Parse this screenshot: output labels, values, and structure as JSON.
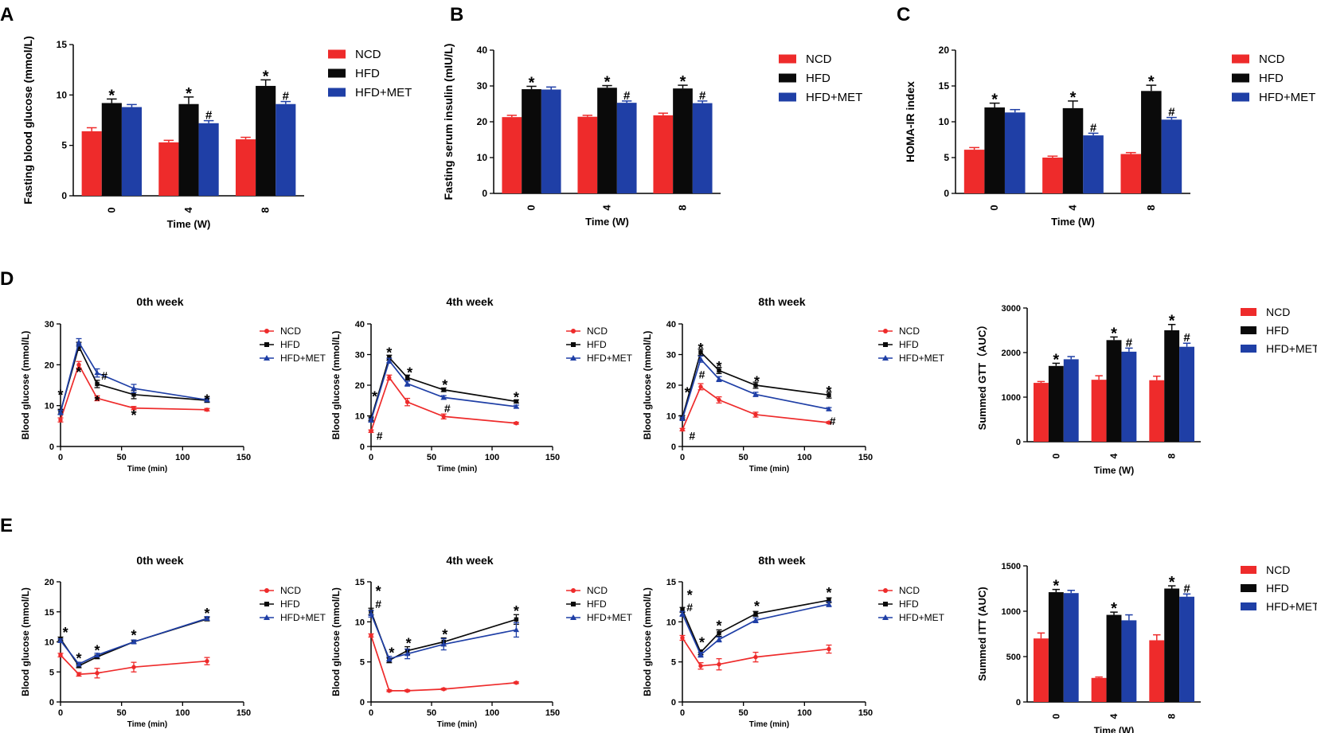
{
  "panel_letters": [
    "A",
    "B",
    "C",
    "D",
    "E"
  ],
  "colors": {
    "NCD": "#ee2b2b",
    "HFD": "#0a0a0a",
    "HFD+MET": "#1f3fa6"
  },
  "chart_data": [
    {
      "id": "A",
      "type": "bar",
      "title": "",
      "xlabel": "Time (W)",
      "ylabel": "Fasting blood glucose (mmol/L)",
      "categories": [
        "0",
        "4",
        "8"
      ],
      "ylim": [
        0,
        15
      ],
      "yticks": [
        0,
        5,
        10,
        15
      ],
      "series": [
        {
          "name": "NCD",
          "values": [
            6.4,
            5.3,
            5.6
          ],
          "err": [
            0.35,
            0.2,
            0.2
          ]
        },
        {
          "name": "HFD",
          "values": [
            9.2,
            9.1,
            10.9
          ],
          "err": [
            0.4,
            0.7,
            0.6
          ]
        },
        {
          "name": "HFD+MET",
          "values": [
            8.8,
            7.2,
            9.1
          ],
          "err": [
            0.25,
            0.25,
            0.25
          ]
        }
      ],
      "annotations": [
        [
          "",
          "*",
          ""
        ],
        [
          "",
          "*",
          "#"
        ],
        [
          "",
          "*",
          "#"
        ]
      ],
      "legend": [
        "NCD",
        "HFD",
        "HFD+MET"
      ]
    },
    {
      "id": "B",
      "type": "bar",
      "title": "",
      "xlabel": "Time (W)",
      "ylabel": "Fasting serum insulin (mIU/L)",
      "categories": [
        "0",
        "4",
        "8"
      ],
      "ylim": [
        0,
        40
      ],
      "yticks": [
        0,
        10,
        20,
        30,
        40
      ],
      "series": [
        {
          "name": "NCD",
          "values": [
            21.3,
            21.4,
            21.8
          ],
          "err": [
            0.5,
            0.4,
            0.6
          ]
        },
        {
          "name": "HFD",
          "values": [
            29.1,
            29.5,
            29.3
          ],
          "err": [
            0.8,
            0.6,
            0.9
          ]
        },
        {
          "name": "HFD+MET",
          "values": [
            29.0,
            25.3,
            25.2
          ],
          "err": [
            0.7,
            0.5,
            0.6
          ]
        }
      ],
      "annotations": [
        [
          "",
          "*",
          ""
        ],
        [
          "",
          "*",
          "#"
        ],
        [
          "",
          "*",
          "#"
        ]
      ],
      "legend": [
        "NCD",
        "HFD",
        "HFD+MET"
      ]
    },
    {
      "id": "C",
      "type": "bar",
      "title": "",
      "xlabel": "Time (W)",
      "ylabel": "HOMA-IR index",
      "categories": [
        "0",
        "4",
        "8"
      ],
      "ylim": [
        0,
        20
      ],
      "yticks": [
        0,
        5,
        10,
        15,
        20
      ],
      "series": [
        {
          "name": "NCD",
          "values": [
            6.1,
            5.0,
            5.5
          ],
          "err": [
            0.3,
            0.2,
            0.2
          ]
        },
        {
          "name": "HFD",
          "values": [
            12.0,
            11.9,
            14.3
          ],
          "err": [
            0.6,
            1.0,
            0.8
          ]
        },
        {
          "name": "HFD+MET",
          "values": [
            11.3,
            8.1,
            10.3
          ],
          "err": [
            0.4,
            0.3,
            0.3
          ]
        }
      ],
      "annotations": [
        [
          "",
          "*",
          ""
        ],
        [
          "",
          "*",
          "#"
        ],
        [
          "",
          "*",
          "#"
        ]
      ],
      "legend": [
        "NCD",
        "HFD",
        "HFD+MET"
      ]
    },
    {
      "id": "D1",
      "type": "line",
      "title": "0th week",
      "xlabel": "Time (min)",
      "ylabel": "Blood glucose (mmol/L)",
      "x": [
        0,
        15,
        30,
        60,
        120
      ],
      "xlim": [
        0,
        150
      ],
      "xticks": [
        0,
        50,
        100,
        150
      ],
      "ylim": [
        0,
        30
      ],
      "yticks": [
        0,
        10,
        20,
        30
      ],
      "series": [
        {
          "name": "NCD",
          "values": [
            6.5,
            20.0,
            11.8,
            9.4,
            9.0
          ],
          "err": [
            0.5,
            0.8,
            0.6,
            0.4,
            0.3
          ]
        },
        {
          "name": "HFD",
          "values": [
            8.5,
            24.5,
            15.3,
            12.7,
            11.3
          ],
          "err": [
            0.6,
            1.0,
            0.9,
            1.0,
            0.5
          ]
        },
        {
          "name": "HFD+MET",
          "values": [
            8.3,
            25.5,
            18.0,
            14.2,
            11.4
          ],
          "err": [
            0.5,
            0.9,
            1.0,
            1.0,
            0.4
          ]
        }
      ],
      "annotations": [
        {
          "x": 0,
          "y": 13.0,
          "text": "*"
        },
        {
          "x": 15,
          "y": 18.5,
          "text": "*"
        },
        {
          "x": 30,
          "y": 11.5,
          "text": "*"
        },
        {
          "x": 36,
          "y": 17.3,
          "text": "#"
        },
        {
          "x": 60,
          "y": 8.0,
          "text": "*"
        },
        {
          "x": 120,
          "y": 11.8,
          "text": "*"
        }
      ],
      "legend": [
        "NCD",
        "HFD",
        "HFD+MET"
      ]
    },
    {
      "id": "D2",
      "type": "line",
      "title": "4th week",
      "xlabel": "Time (min)",
      "ylabel": "Blood glucose (mmol/L)",
      "x": [
        0,
        15,
        30,
        60,
        120
      ],
      "xlim": [
        0,
        150
      ],
      "xticks": [
        0,
        50,
        100,
        150
      ],
      "ylim": [
        0,
        40
      ],
      "yticks": [
        0,
        10,
        20,
        30,
        40
      ],
      "series": [
        {
          "name": "NCD",
          "values": [
            5.0,
            22.5,
            14.5,
            9.8,
            7.6
          ],
          "err": [
            0.4,
            0.8,
            1.2,
            0.8,
            0.3
          ]
        },
        {
          "name": "HFD",
          "values": [
            9.0,
            29.0,
            22.5,
            18.5,
            14.7
          ],
          "err": [
            0.6,
            0.8,
            0.8,
            0.6,
            0.5
          ]
        },
        {
          "name": "HFD+MET",
          "values": [
            8.5,
            28.0,
            20.5,
            16.0,
            13.0
          ],
          "err": [
            0.5,
            0.8,
            0.8,
            0.6,
            0.5
          ]
        }
      ],
      "annotations": [
        {
          "x": 3,
          "y": 16.8,
          "text": "*"
        },
        {
          "x": 7,
          "y": 3.5,
          "text": "#"
        },
        {
          "x": 15,
          "y": 31.0,
          "text": "*"
        },
        {
          "x": 32,
          "y": 24.5,
          "text": "*"
        },
        {
          "x": 63,
          "y": 12.5,
          "text": "#"
        },
        {
          "x": 61,
          "y": 20.5,
          "text": "*"
        },
        {
          "x": 120,
          "y": 16.5,
          "text": "*"
        }
      ],
      "legend": [
        "NCD",
        "HFD",
        "HFD+MET"
      ]
    },
    {
      "id": "D3",
      "type": "line",
      "title": "8th week",
      "xlabel": "Time (min)",
      "ylabel": "Blood glucose (mmol/L)",
      "x": [
        0,
        15,
        30,
        60,
        120
      ],
      "xlim": [
        0,
        150
      ],
      "xticks": [
        0,
        50,
        100,
        150
      ],
      "ylim": [
        0,
        40
      ],
      "yticks": [
        0,
        10,
        20,
        30,
        40
      ],
      "series": [
        {
          "name": "NCD",
          "values": [
            5.5,
            19.5,
            15.2,
            10.4,
            7.8
          ],
          "err": [
            0.4,
            1.0,
            1.0,
            0.8,
            0.3
          ]
        },
        {
          "name": "HFD",
          "values": [
            9.5,
            30.8,
            24.8,
            20.0,
            16.8
          ],
          "err": [
            0.6,
            1.0,
            1.0,
            1.0,
            1.0
          ]
        },
        {
          "name": "HFD+MET",
          "values": [
            9.0,
            28.5,
            22.0,
            17.0,
            12.2
          ],
          "err": [
            0.5,
            1.0,
            0.8,
            0.7,
            0.5
          ]
        }
      ],
      "annotations": [
        {
          "x": 4,
          "y": 18.0,
          "text": "*"
        },
        {
          "x": 8,
          "y": 3.5,
          "text": "#"
        },
        {
          "x": 15,
          "y": 32.5,
          "text": "*"
        },
        {
          "x": 16,
          "y": 23.5,
          "text": "#"
        },
        {
          "x": 30,
          "y": 26.5,
          "text": "*"
        },
        {
          "x": 61,
          "y": 21.7,
          "text": "*"
        },
        {
          "x": 120,
          "y": 18.5,
          "text": "*"
        },
        {
          "x": 123,
          "y": 8.3,
          "text": "#"
        }
      ],
      "legend": [
        "NCD",
        "HFD",
        "HFD+MET"
      ]
    },
    {
      "id": "D4",
      "type": "bar",
      "title": "",
      "xlabel": "Time (W)",
      "ylabel": "Summed GTT（AUC）",
      "categories": [
        "0",
        "4",
        "8"
      ],
      "ylim": [
        0,
        3000
      ],
      "yticks": [
        0,
        1000,
        2000,
        3000
      ],
      "series": [
        {
          "name": "NCD",
          "values": [
            1320,
            1390,
            1380
          ],
          "err": [
            30,
            90,
            90
          ]
        },
        {
          "name": "HFD",
          "values": [
            1700,
            2280,
            2500
          ],
          "err": [
            60,
            70,
            130
          ]
        },
        {
          "name": "HFD+MET",
          "values": [
            1850,
            2020,
            2130
          ],
          "err": [
            60,
            80,
            80
          ]
        }
      ],
      "annotations": [
        [
          "",
          "*",
          ""
        ],
        [
          "",
          "*",
          "#"
        ],
        [
          "",
          "*",
          "#"
        ]
      ],
      "legend": [
        "NCD",
        "HFD",
        "HFD+MET"
      ]
    },
    {
      "id": "E1",
      "type": "line",
      "title": "0th week",
      "xlabel": "Time (min)",
      "ylabel": "Blood glucose (mmol/L)",
      "x": [
        0,
        15,
        30,
        60,
        120
      ],
      "xlim": [
        0,
        150
      ],
      "xticks": [
        0,
        50,
        100,
        150
      ],
      "ylim": [
        0,
        20
      ],
      "yticks": [
        0,
        5,
        10,
        15,
        20
      ],
      "series": [
        {
          "name": "NCD",
          "values": [
            7.8,
            4.6,
            4.8,
            5.8,
            6.8
          ],
          "err": [
            0.3,
            0.3,
            0.8,
            0.8,
            0.6
          ]
        },
        {
          "name": "HFD",
          "values": [
            10.5,
            6.0,
            7.5,
            10.0,
            13.8
          ],
          "err": [
            0.3,
            0.3,
            0.3,
            0.3,
            0.3
          ]
        },
        {
          "name": "HFD+MET",
          "values": [
            10.2,
            6.3,
            7.8,
            10.0,
            13.9
          ],
          "err": [
            0.3,
            0.3,
            0.3,
            0.3,
            0.3
          ]
        }
      ],
      "annotations": [
        {
          "x": 4,
          "y": 11.8,
          "text": "*"
        },
        {
          "x": 15,
          "y": 7.5,
          "text": "*"
        },
        {
          "x": 30,
          "y": 8.8,
          "text": "*"
        },
        {
          "x": 60,
          "y": 11.3,
          "text": "*"
        },
        {
          "x": 120,
          "y": 15.0,
          "text": "*"
        }
      ],
      "legend": [
        "NCD",
        "HFD",
        "HFD+MET"
      ]
    },
    {
      "id": "E2",
      "type": "line",
      "title": "4th week",
      "xlabel": "Time (min)",
      "ylabel": "Blood glucose (mmol/L)",
      "x": [
        0,
        15,
        30,
        60,
        120
      ],
      "xlim": [
        0,
        150
      ],
      "xticks": [
        0,
        50,
        100,
        150
      ],
      "ylim": [
        0,
        15
      ],
      "yticks": [
        0,
        5,
        10,
        15
      ],
      "series": [
        {
          "name": "NCD",
          "values": [
            8.3,
            1.4,
            1.4,
            1.6,
            2.4
          ],
          "err": [
            0.2,
            0.1,
            0.1,
            0.1,
            0.1
          ]
        },
        {
          "name": "HFD",
          "values": [
            11.3,
            5.2,
            6.4,
            7.5,
            10.3
          ],
          "err": [
            0.4,
            0.3,
            0.5,
            0.5,
            0.6
          ]
        },
        {
          "name": "HFD+MET",
          "values": [
            11.0,
            5.4,
            6.0,
            7.2,
            9.0
          ],
          "err": [
            0.4,
            0.3,
            0.6,
            0.7,
            0.9
          ]
        }
      ],
      "annotations": [
        {
          "x": 6,
          "y": 14.0,
          "text": "*"
        },
        {
          "x": 6,
          "y": 12.2,
          "text": "#"
        },
        {
          "x": 17,
          "y": 6.3,
          "text": "*"
        },
        {
          "x": 31,
          "y": 7.5,
          "text": "*"
        },
        {
          "x": 61,
          "y": 8.6,
          "text": "*"
        },
        {
          "x": 120,
          "y": 11.5,
          "text": "*"
        }
      ],
      "legend": [
        "NCD",
        "HFD",
        "HFD+MET"
      ]
    },
    {
      "id": "E3",
      "type": "line",
      "title": "8th week",
      "xlabel": "Time (min)",
      "ylabel": "Blood glucose (mmol/L)",
      "x": [
        0,
        15,
        30,
        60,
        120
      ],
      "xlim": [
        0,
        150
      ],
      "xticks": [
        0,
        50,
        100,
        150
      ],
      "ylim": [
        0,
        15
      ],
      "yticks": [
        0,
        5,
        10,
        15
      ],
      "series": [
        {
          "name": "NCD",
          "values": [
            8.0,
            4.5,
            4.7,
            5.6,
            6.6
          ],
          "err": [
            0.3,
            0.4,
            0.7,
            0.6,
            0.5
          ]
        },
        {
          "name": "HFD",
          "values": [
            11.5,
            6.2,
            8.6,
            11.0,
            12.7
          ],
          "err": [
            0.3,
            0.3,
            0.4,
            0.3,
            0.3
          ]
        },
        {
          "name": "HFD+MET",
          "values": [
            11.0,
            5.9,
            7.8,
            10.2,
            12.2
          ],
          "err": [
            0.3,
            0.3,
            0.3,
            0.3,
            0.3
          ]
        }
      ],
      "annotations": [
        {
          "x": 6,
          "y": 13.5,
          "text": "*"
        },
        {
          "x": 6,
          "y": 11.8,
          "text": "#"
        },
        {
          "x": 16,
          "y": 7.6,
          "text": "*"
        },
        {
          "x": 30,
          "y": 9.7,
          "text": "*"
        },
        {
          "x": 61,
          "y": 12.1,
          "text": "*"
        },
        {
          "x": 120,
          "y": 13.8,
          "text": "*"
        }
      ],
      "legend": [
        "NCD",
        "HFD",
        "HFD+MET"
      ]
    },
    {
      "id": "E4",
      "type": "bar",
      "title": "",
      "xlabel": "Time (W)",
      "ylabel": "Summed ITT (AUC)",
      "categories": [
        "0",
        "4",
        "8"
      ],
      "ylim": [
        0,
        1500
      ],
      "yticks": [
        0,
        500,
        1000,
        1500
      ],
      "series": [
        {
          "name": "NCD",
          "values": [
            700,
            265,
            680
          ],
          "err": [
            60,
            10,
            60
          ]
        },
        {
          "name": "HFD",
          "values": [
            1210,
            960,
            1250
          ],
          "err": [
            30,
            30,
            30
          ]
        },
        {
          "name": "HFD+MET",
          "values": [
            1200,
            900,
            1160
          ],
          "err": [
            30,
            60,
            30
          ]
        }
      ],
      "annotations": [
        [
          "",
          "*",
          ""
        ],
        [
          "",
          "*",
          ""
        ],
        [
          "",
          "*",
          "#"
        ]
      ],
      "legend": [
        "NCD",
        "HFD",
        "HFD+MET"
      ]
    }
  ]
}
